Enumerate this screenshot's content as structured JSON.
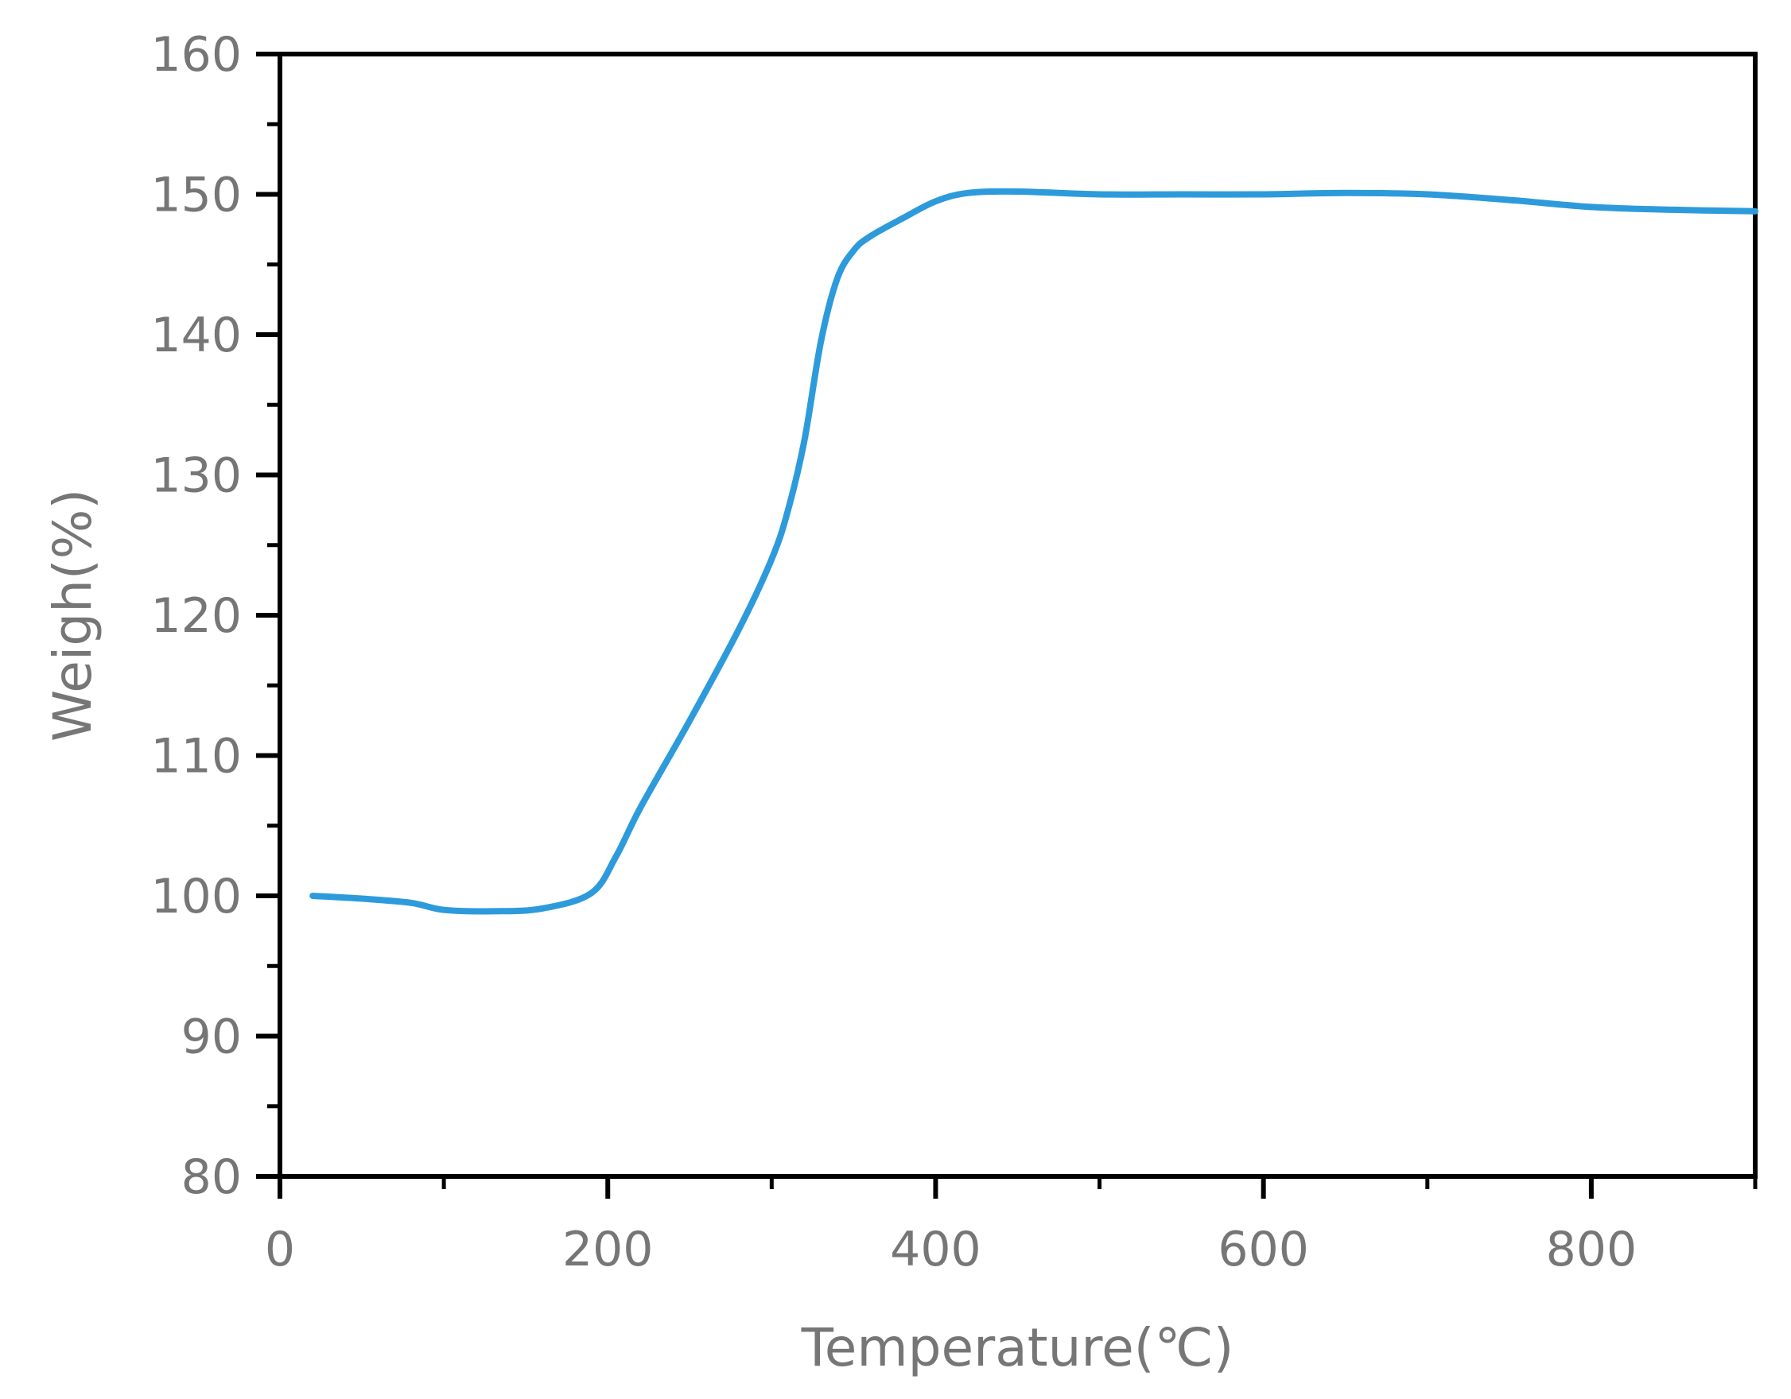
{
  "chart_data": {
    "type": "line",
    "title": "",
    "xlabel": "Temperature(℃)",
    "ylabel": "Weigh(%)",
    "xlim": [
      0,
      900
    ],
    "ylim": [
      80,
      160
    ],
    "x_ticks": [
      0,
      200,
      400,
      600,
      800
    ],
    "x_minor_ticks": [
      100,
      300,
      500,
      700,
      900
    ],
    "y_ticks": [
      80,
      90,
      100,
      110,
      120,
      130,
      140,
      150,
      160
    ],
    "grid": false,
    "legend": "none",
    "line_color": "#2D9BDB",
    "axis_color": "#000000",
    "series": [
      {
        "x": [
          20,
          50,
          80,
          100,
          130,
          160,
          190,
          205,
          220,
          250,
          280,
          300,
          310,
          320,
          330,
          340,
          350,
          360,
          380,
          400,
          420,
          450,
          500,
          550,
          600,
          650,
          700,
          750,
          800,
          850,
          900
        ],
        "values": [
          100,
          99.8,
          99.5,
          99.0,
          98.9,
          99.1,
          100.2,
          102.8,
          106.3,
          112.5,
          119.0,
          124.0,
          127.5,
          132.5,
          139.5,
          144.0,
          146.0,
          147.0,
          148.3,
          149.5,
          150.1,
          150.2,
          150.0,
          150.0,
          150.0,
          150.1,
          150.0,
          149.6,
          149.1,
          148.9,
          148.8
        ]
      }
    ]
  }
}
